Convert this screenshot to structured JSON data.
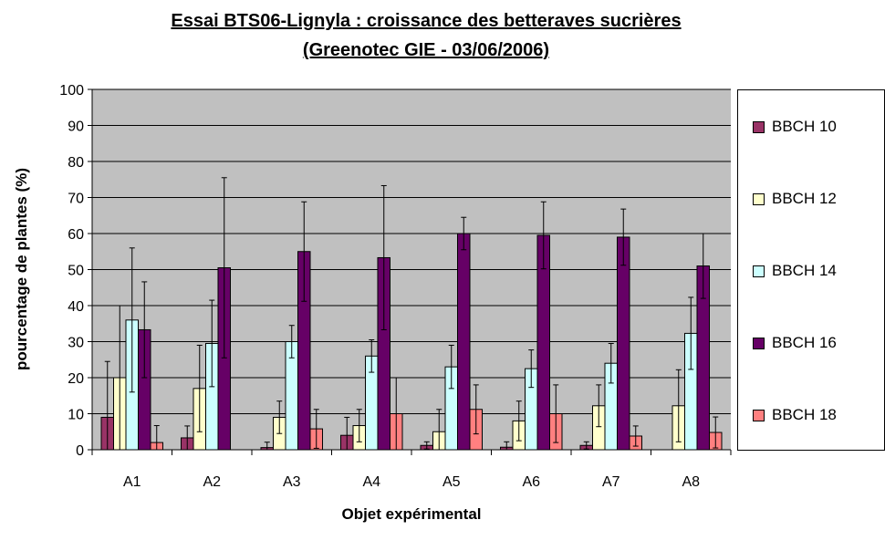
{
  "chart_data": {
    "type": "bar",
    "title": "Essai BTS06-Lignyla : croissance des betteraves sucrières",
    "subtitle": "(Greenotec GIE - 03/06/2006)",
    "xlabel": "Objet expérimental",
    "ylabel": "pourcentage de plantes (%)",
    "ylim": [
      0,
      100
    ],
    "yticks": [
      0,
      10,
      20,
      30,
      40,
      50,
      60,
      70,
      80,
      90,
      100
    ],
    "grid": true,
    "legend_position": "right",
    "categories": [
      "A1",
      "A2",
      "A3",
      "A4",
      "A5",
      "A6",
      "A7",
      "A8"
    ],
    "series": [
      {
        "name": "BBCH 10",
        "color": "#993366",
        "values": [
          9,
          3.3,
          0.6,
          4,
          1.2,
          0.7,
          1.2,
          0
        ],
        "errors": [
          15.5,
          3.3,
          1.5,
          5,
          1,
          1.5,
          1,
          0
        ]
      },
      {
        "name": "BBCH 12",
        "color": "#FFFFCC",
        "values": [
          20,
          17,
          9,
          6.7,
          5,
          8,
          12.2,
          12.2
        ],
        "errors": [
          20,
          12,
          4.5,
          4.5,
          6.2,
          5.5,
          5.8,
          10
        ]
      },
      {
        "name": "BBCH 14",
        "color": "#CCFFFF",
        "values": [
          36,
          29.5,
          30,
          26,
          23,
          22.5,
          24,
          32.3
        ],
        "errors": [
          20,
          12,
          4.5,
          4.5,
          6,
          5.2,
          5.5,
          10
        ]
      },
      {
        "name": "BBCH 16",
        "color": "#660066",
        "values": [
          33.3,
          50.5,
          55,
          53.3,
          60,
          59.5,
          59,
          51
        ],
        "errors": [
          13.3,
          25,
          13.8,
          20,
          4.5,
          9.3,
          7.8,
          9
        ]
      },
      {
        "name": "BBCH 18",
        "color": "#FF8080",
        "values": [
          2,
          0,
          5.8,
          10,
          11.2,
          10,
          3.8,
          4.8
        ],
        "errors": [
          4.7,
          0,
          5.4,
          10,
          6.8,
          8,
          2.8,
          4.3
        ]
      }
    ]
  }
}
